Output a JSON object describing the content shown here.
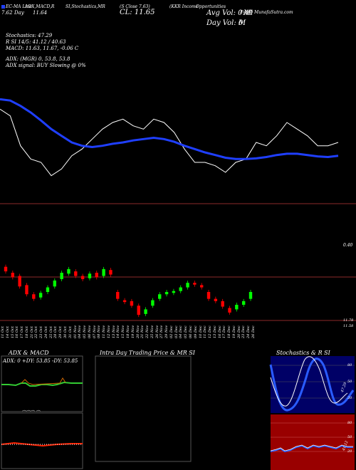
{
  "header": {
    "line1": [
      "EC-MA Line",
      "ADX,MACD,R",
      "SI,Stochastics,MR",
      "(S Close 7.63)",
      "(KKR Income",
      "Opportunities",
      "Fund) MunafaSutra.com"
    ],
    "day_label": "7.62",
    "day_text": "Day",
    "day_value": "11.64",
    "cl": "CL: 11.65",
    "avg_vol": "Avg Vol: 0.41",
    "avg_vol_unit": "M",
    "day_vol": "Day Vol: 0",
    "day_vol_unit": "M"
  },
  "indicators": {
    "stoch": "Stochastics: 47.29",
    "rsi": "R                    SI 14/5: 41.12  / 40.63",
    "macd": "MACD: 11.63,  11.67,  -0.06  C",
    "adx": "ADX:                              (MGR) 0, 53.8,  53.8",
    "adx_signal": "ADX  signal:                        BUY Slowing @ 0%"
  },
  "price_right_label": "0.40",
  "price_bottom_label": "11.78",
  "price_bottom_label2": "11.58",
  "date_labels": [
    "11 Oct",
    "14 Oct",
    "15 Oct",
    "16 Oct",
    "17 Oct",
    "18 Oct",
    "21 Oct",
    "22 Oct",
    "23 Oct",
    "24 Oct",
    "25 Oct",
    "28 Oct",
    "29 Oct",
    "30 Oct",
    "31 Oct",
    "01 Nov",
    "04 Nov",
    "05 Nov",
    "06 Nov",
    "07 Nov",
    "08 Nov",
    "11 Nov",
    "12 Nov",
    "13 Nov",
    "14 Nov",
    "15 Nov",
    "18 Nov",
    "19 Nov",
    "20 Nov",
    "21 Nov",
    "22 Nov",
    "25 Nov",
    "26 Nov",
    "27 Nov",
    "29 Nov",
    "02 Dec",
    "03 Dec",
    "04 Dec",
    "05 Dec",
    "06 Dec",
    "09 Dec",
    "10 Dec",
    "11 Dec",
    "12 Dec",
    "13 Dec",
    "16 Dec",
    "17 Dec",
    "18 Dec",
    "19 Dec",
    "20 Dec",
    "23 Dec",
    "24 Dec",
    "26 Dec"
  ],
  "panels": {
    "adx_title": "ADX  & MACD",
    "adx_values": "ADX: 0   +DY: 53.85  -DY: 53.85",
    "mrsi_title": "Intra  Day Trading Price  & MR                      SI",
    "stoch_title": "Stochastics & R                 SI",
    "stoch_axis": [
      "80",
      "50",
      "20"
    ],
    "rsi_axis": [
      "80",
      "50",
      "20"
    ],
    "stoch_label": "47.29",
    "rsi_label": "41.12"
  },
  "colors": {
    "background": "#000000",
    "ema": "#1f3fff",
    "close": "#ffffff",
    "up_candle": "#00ff00",
    "down_candle": "#ff0000",
    "adx_green": "#33cc33",
    "stoch_bg": "#000066",
    "rsi_bg": "#990000"
  },
  "chart_data": {
    "type": "line",
    "series": [
      {
        "values": [
          12.15,
          12.05,
          11.6,
          11.4,
          11.35,
          11.15,
          11.25,
          11.45,
          11.55,
          11.7,
          11.85,
          11.95,
          12.0,
          11.9,
          11.85,
          12.0,
          11.95,
          11.8,
          11.55,
          11.35,
          11.35,
          11.3,
          11.2,
          11.35,
          11.4,
          11.65,
          11.6,
          11.75,
          11.95,
          11.85,
          11.75,
          11.6,
          11.6,
          11.65
        ]
      },
      {
        "values": [
          12.3,
          12.28,
          12.2,
          12.1,
          11.98,
          11.85,
          11.75,
          11.65,
          11.6,
          11.58,
          11.6,
          11.63,
          11.65,
          11.68,
          11.7,
          11.72,
          11.7,
          11.66,
          11.6,
          11.55,
          11.5,
          11.46,
          11.42,
          11.4,
          11.4,
          11.41,
          11.43,
          11.46,
          11.48,
          11.48,
          11.46,
          11.44,
          11.43,
          11.45
        ]
      }
    ],
    "candles": [
      {
        "o": 12.15,
        "c": 12.05
      },
      {
        "o": 12.02,
        "c": 11.92
      },
      {
        "o": 11.95,
        "c": 11.72
      },
      {
        "o": 11.75,
        "c": 11.55
      },
      {
        "o": 11.55,
        "c": 11.45
      },
      {
        "o": 11.48,
        "c": 11.58
      },
      {
        "o": 11.6,
        "c": 11.7
      },
      {
        "o": 11.72,
        "c": 11.85
      },
      {
        "o": 11.88,
        "c": 12.02
      },
      {
        "o": 12.0,
        "c": 12.1
      },
      {
        "o": 12.05,
        "c": 11.95
      },
      {
        "o": 11.95,
        "c": 11.88
      },
      {
        "o": 11.9,
        "c": 12.0
      },
      {
        "o": 12.02,
        "c": 11.92
      },
      {
        "o": 11.95,
        "c": 12.1
      },
      {
        "o": 12.08,
        "c": 11.98
      },
      {
        "o": 11.6,
        "c": 11.45
      },
      {
        "o": 11.42,
        "c": 11.38
      },
      {
        "o": 11.4,
        "c": 11.3
      },
      {
        "o": 11.3,
        "c": 11.1
      },
      {
        "o": 11.12,
        "c": 11.22
      },
      {
        "o": 11.3,
        "c": 11.42
      },
      {
        "o": 11.45,
        "c": 11.55
      },
      {
        "o": 11.55,
        "c": 11.6
      },
      {
        "o": 11.58,
        "c": 11.62
      },
      {
        "o": 11.62,
        "c": 11.7
      },
      {
        "o": 11.7,
        "c": 11.8
      },
      {
        "o": 11.8,
        "c": 11.76
      },
      {
        "o": 11.75,
        "c": 11.7
      },
      {
        "o": 11.6,
        "c": 11.45
      },
      {
        "o": 11.45,
        "c": 11.4
      },
      {
        "o": 11.4,
        "c": 11.28
      },
      {
        "o": 11.25,
        "c": 11.15
      },
      {
        "o": 11.22,
        "c": 11.32
      },
      {
        "o": 11.32,
        "c": 11.4
      },
      {
        "o": 11.45,
        "c": 11.6
      }
    ]
  }
}
